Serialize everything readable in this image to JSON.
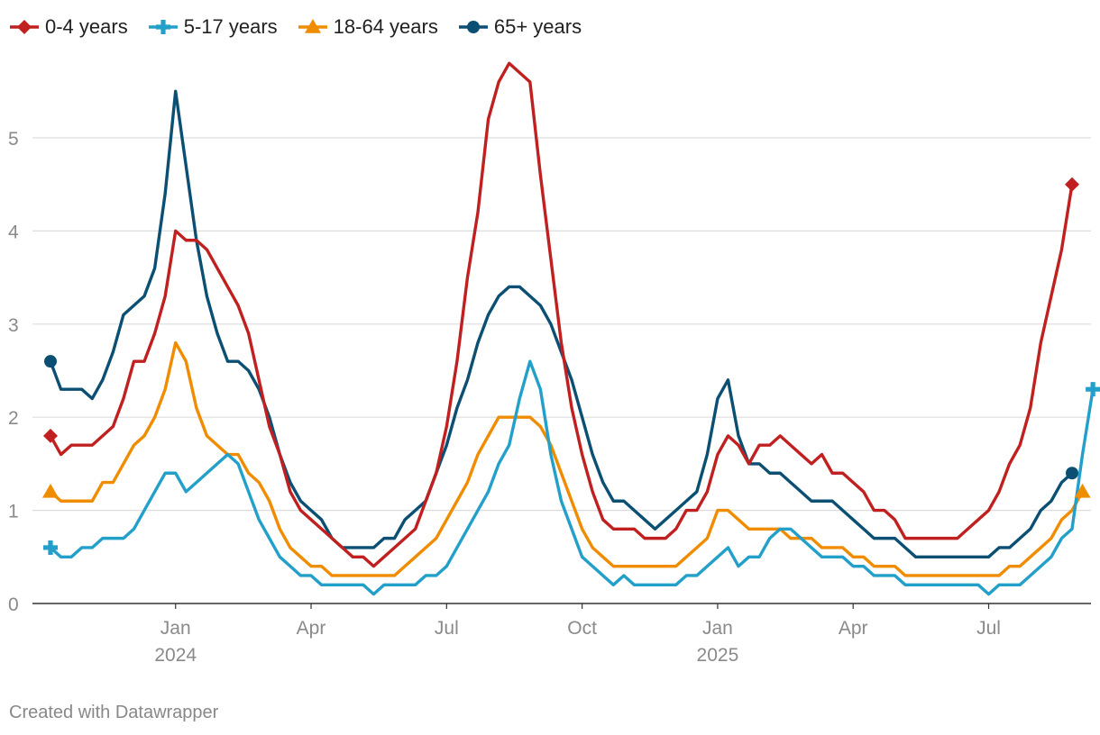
{
  "footer": "Created with Datawrapper",
  "colors": {
    "s0": "#c0201f",
    "s1": "#23a0c9",
    "s2": "#f08c00",
    "s3": "#0b4f73",
    "grid": "#dddddd",
    "axis": "#333333",
    "tick": "#8a8a8a"
  },
  "chart_data": {
    "type": "line",
    "title": "",
    "xlabel": "",
    "ylabel": "",
    "ylim": [
      0,
      6
    ],
    "yticks": [
      "0",
      "1",
      "2",
      "3",
      "4",
      "5"
    ],
    "x_ticks": [
      {
        "label": "Jan",
        "year": "2024",
        "week": 12
      },
      {
        "label": "Apr",
        "year": "",
        "week": 25
      },
      {
        "label": "Jul",
        "year": "",
        "week": 38
      },
      {
        "label": "Oct",
        "year": "",
        "week": 51
      },
      {
        "label": "Jan",
        "year": "2025",
        "week": 64
      },
      {
        "label": "Apr",
        "year": "",
        "week": 77
      },
      {
        "label": "Jul",
        "year": "",
        "week": 90
      }
    ],
    "series": [
      {
        "name": "0-4 years",
        "marker": "diamond",
        "values": [
          1.8,
          1.6,
          1.7,
          1.7,
          1.7,
          1.8,
          1.9,
          2.2,
          2.6,
          2.6,
          2.9,
          3.3,
          4.0,
          3.9,
          3.9,
          3.8,
          3.6,
          3.4,
          3.2,
          2.9,
          2.4,
          1.9,
          1.6,
          1.2,
          1.0,
          0.9,
          0.8,
          0.7,
          0.6,
          0.5,
          0.5,
          0.4,
          0.5,
          0.6,
          0.7,
          0.8,
          1.1,
          1.4,
          1.9,
          2.6,
          3.5,
          4.2,
          5.2,
          5.6,
          5.8,
          5.7,
          5.6,
          4.6,
          3.7,
          2.8,
          2.1,
          1.6,
          1.2,
          0.9,
          0.8,
          0.8,
          0.8,
          0.7,
          0.7,
          0.7,
          0.8,
          1.0,
          1.0,
          1.2,
          1.6,
          1.8,
          1.7,
          1.5,
          1.7,
          1.7,
          1.8,
          1.7,
          1.6,
          1.5,
          1.6,
          1.4,
          1.4,
          1.3,
          1.2,
          1.0,
          1.0,
          0.9,
          0.7,
          0.7,
          0.7,
          0.7,
          0.7,
          0.7,
          0.8,
          0.9,
          1.0,
          1.2,
          1.5,
          1.7,
          2.1,
          2.8,
          3.3,
          3.8,
          4.5
        ]
      },
      {
        "name": "5-17 years",
        "marker": "plus",
        "values": [
          0.6,
          0.5,
          0.5,
          0.6,
          0.6,
          0.7,
          0.7,
          0.7,
          0.8,
          1.0,
          1.2,
          1.4,
          1.4,
          1.2,
          1.3,
          1.4,
          1.5,
          1.6,
          1.5,
          1.2,
          0.9,
          0.7,
          0.5,
          0.4,
          0.3,
          0.3,
          0.2,
          0.2,
          0.2,
          0.2,
          0.2,
          0.1,
          0.2,
          0.2,
          0.2,
          0.2,
          0.3,
          0.3,
          0.4,
          0.6,
          0.8,
          1.0,
          1.2,
          1.5,
          1.7,
          2.2,
          2.6,
          2.3,
          1.6,
          1.1,
          0.8,
          0.5,
          0.4,
          0.3,
          0.2,
          0.3,
          0.2,
          0.2,
          0.2,
          0.2,
          0.2,
          0.3,
          0.3,
          0.4,
          0.5,
          0.6,
          0.4,
          0.5,
          0.5,
          0.7,
          0.8,
          0.8,
          0.7,
          0.6,
          0.5,
          0.5,
          0.5,
          0.4,
          0.4,
          0.3,
          0.3,
          0.3,
          0.2,
          0.2,
          0.2,
          0.2,
          0.2,
          0.2,
          0.2,
          0.2,
          0.1,
          0.2,
          0.2,
          0.2,
          0.3,
          0.4,
          0.5,
          0.7,
          0.8,
          1.6,
          2.3
        ]
      },
      {
        "name": "18-64 years",
        "marker": "triangle",
        "values": [
          1.2,
          1.1,
          1.1,
          1.1,
          1.1,
          1.3,
          1.3,
          1.5,
          1.7,
          1.8,
          2.0,
          2.3,
          2.8,
          2.6,
          2.1,
          1.8,
          1.7,
          1.6,
          1.6,
          1.4,
          1.3,
          1.1,
          0.8,
          0.6,
          0.5,
          0.4,
          0.4,
          0.3,
          0.3,
          0.3,
          0.3,
          0.3,
          0.3,
          0.3,
          0.4,
          0.5,
          0.6,
          0.7,
          0.9,
          1.1,
          1.3,
          1.6,
          1.8,
          2.0,
          2.0,
          2.0,
          2.0,
          1.9,
          1.7,
          1.4,
          1.1,
          0.8,
          0.6,
          0.5,
          0.4,
          0.4,
          0.4,
          0.4,
          0.4,
          0.4,
          0.4,
          0.5,
          0.6,
          0.7,
          1.0,
          1.0,
          0.9,
          0.8,
          0.8,
          0.8,
          0.8,
          0.7,
          0.7,
          0.7,
          0.6,
          0.6,
          0.6,
          0.5,
          0.5,
          0.4,
          0.4,
          0.4,
          0.3,
          0.3,
          0.3,
          0.3,
          0.3,
          0.3,
          0.3,
          0.3,
          0.3,
          0.3,
          0.4,
          0.4,
          0.5,
          0.6,
          0.7,
          0.9,
          1.0,
          1.2
        ]
      },
      {
        "name": "65+ years",
        "marker": "circle",
        "values": [
          2.6,
          2.3,
          2.3,
          2.3,
          2.2,
          2.4,
          2.7,
          3.1,
          3.2,
          3.3,
          3.6,
          4.4,
          5.5,
          4.7,
          3.9,
          3.3,
          2.9,
          2.6,
          2.6,
          2.5,
          2.3,
          2.0,
          1.6,
          1.3,
          1.1,
          1.0,
          0.9,
          0.7,
          0.6,
          0.6,
          0.6,
          0.6,
          0.7,
          0.7,
          0.9,
          1.0,
          1.1,
          1.4,
          1.7,
          2.1,
          2.4,
          2.8,
          3.1,
          3.3,
          3.4,
          3.4,
          3.3,
          3.2,
          3.0,
          2.7,
          2.4,
          2.0,
          1.6,
          1.3,
          1.1,
          1.1,
          1.0,
          0.9,
          0.8,
          0.9,
          1.0,
          1.1,
          1.2,
          1.6,
          2.2,
          2.4,
          1.8,
          1.5,
          1.5,
          1.4,
          1.4,
          1.3,
          1.2,
          1.1,
          1.1,
          1.1,
          1.0,
          0.9,
          0.8,
          0.7,
          0.7,
          0.7,
          0.6,
          0.5,
          0.5,
          0.5,
          0.5,
          0.5,
          0.5,
          0.5,
          0.5,
          0.6,
          0.6,
          0.7,
          0.8,
          1.0,
          1.1,
          1.3,
          1.4
        ]
      }
    ]
  }
}
